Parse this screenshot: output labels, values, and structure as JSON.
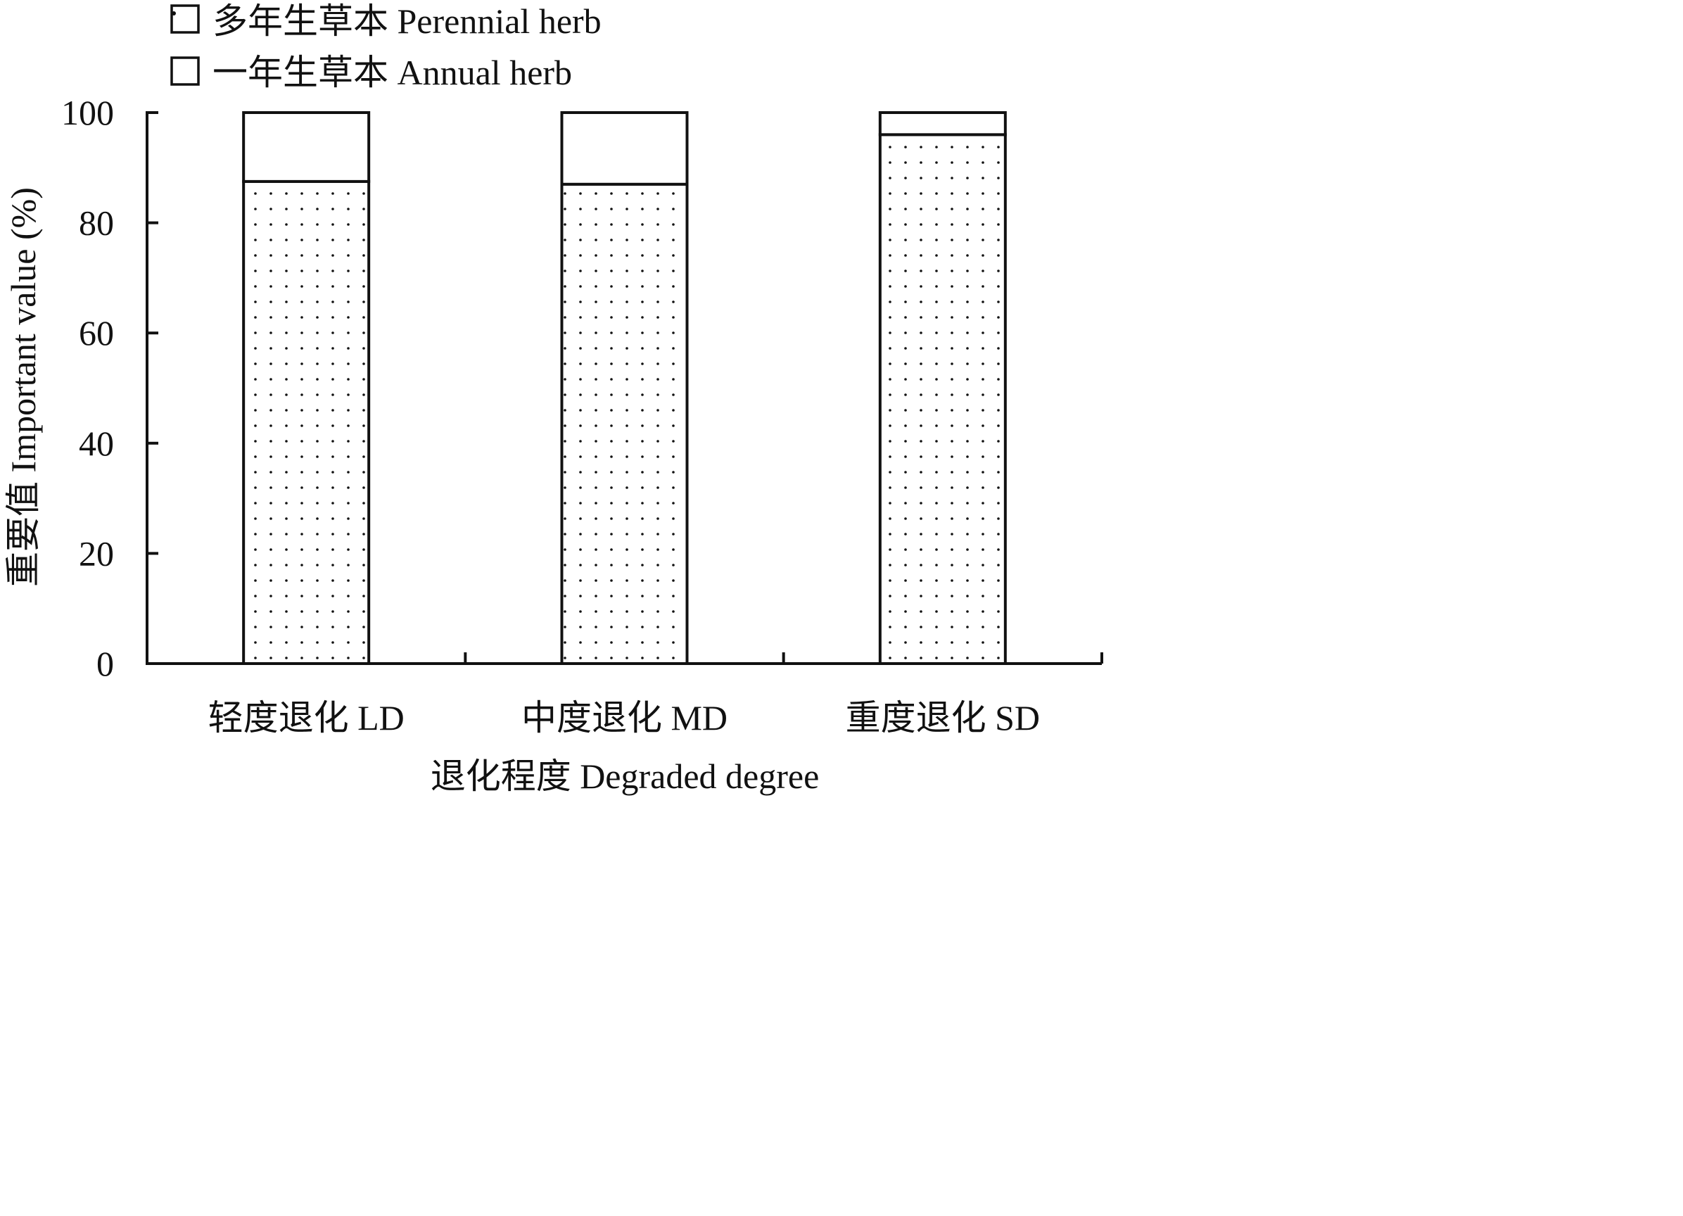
{
  "chart_data": {
    "type": "bar",
    "stacked": true,
    "categories": [
      "轻度退化 LD",
      "中度退化 MD",
      "重度退化 SD"
    ],
    "series": [
      {
        "name": "多年生草本 Perennial herb",
        "values": [
          87.5,
          87,
          96
        ],
        "pattern": "dotted"
      },
      {
        "name": "一年生草本 Annual herb",
        "values": [
          12.5,
          13,
          4
        ],
        "pattern": "open"
      }
    ],
    "xlabel": "退化程度 Degraded degree",
    "ylabel": "重要值 Important value (%)",
    "ylim": [
      0,
      100
    ],
    "yticks": [
      0,
      20,
      40,
      60,
      80,
      100
    ],
    "grid": false,
    "legend_position": "top-left",
    "colors": {
      "ink": "#111111",
      "fill": "#ffffff",
      "dot": "#111111"
    }
  }
}
